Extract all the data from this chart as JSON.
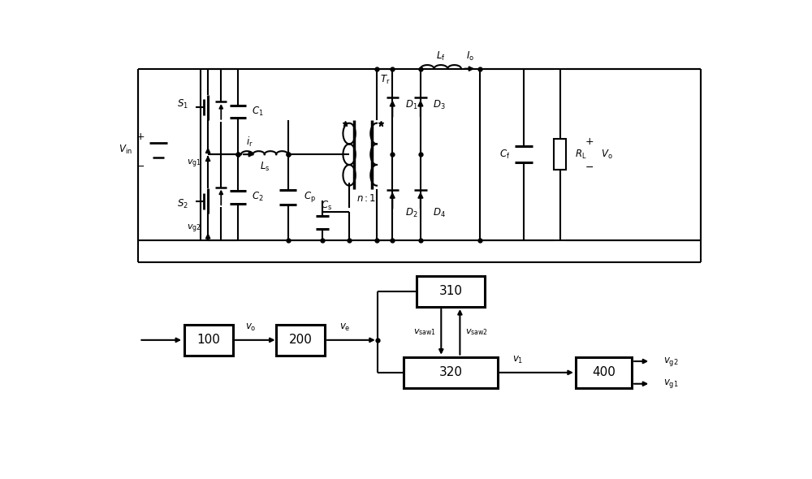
{
  "bg_color": "#ffffff",
  "lw": 1.5,
  "lw_thick": 2.2,
  "lw_component": 2.0
}
